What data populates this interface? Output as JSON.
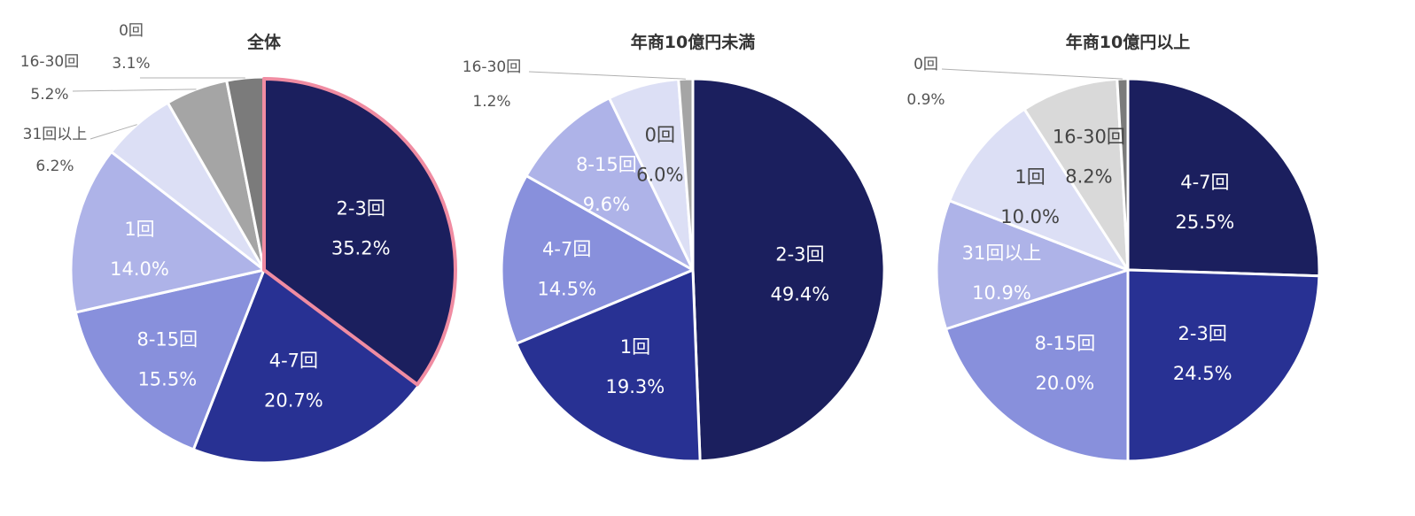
{
  "chart_data": [
    {
      "type": "pie",
      "title": "全体",
      "slices": [
        {
          "label": "2-3回",
          "value": 35.2,
          "display": "35.2%",
          "color": "#1b1f5e",
          "text_color": "#ffffff",
          "label_pos": "inside",
          "highlight": true
        },
        {
          "label": "4-7回",
          "value": 20.7,
          "display": "20.7%",
          "color": "#283193",
          "text_color": "#ffffff",
          "label_pos": "inside"
        },
        {
          "label": "8-15回",
          "value": 15.5,
          "display": "15.5%",
          "color": "#8890dc",
          "text_color": "#ffffff",
          "label_pos": "inside"
        },
        {
          "label": "1回",
          "value": 14.0,
          "display": "14.0%",
          "color": "#aeb3e8",
          "text_color": "#ffffff",
          "label_pos": "inside"
        },
        {
          "label": "31回以上",
          "value": 6.2,
          "display": "6.2%",
          "color": "#dcdff5",
          "text_color": "#555555",
          "label_pos": "outside"
        },
        {
          "label": "16-30回",
          "value": 5.2,
          "display": "5.2%",
          "color": "#a5a5a5",
          "text_color": "#555555",
          "label_pos": "outside"
        },
        {
          "label": "0回",
          "value": 3.1,
          "display": "3.1%",
          "color": "#7b7b7b",
          "text_color": "#555555",
          "label_pos": "outside"
        }
      ],
      "highlight_color": "#f08ca2"
    },
    {
      "type": "pie",
      "title": "年商10億円未満",
      "slices": [
        {
          "label": "2-3回",
          "value": 49.4,
          "display": "49.4%",
          "color": "#1b1f5e",
          "text_color": "#ffffff",
          "label_pos": "inside"
        },
        {
          "label": "1回",
          "value": 19.3,
          "display": "19.3%",
          "color": "#283193",
          "text_color": "#ffffff",
          "label_pos": "inside"
        },
        {
          "label": "4-7回",
          "value": 14.5,
          "display": "14.5%",
          "color": "#8890dc",
          "text_color": "#ffffff",
          "label_pos": "inside"
        },
        {
          "label": "8-15回",
          "value": 9.6,
          "display": "9.6%",
          "color": "#aeb3e8",
          "text_color": "#ffffff",
          "label_pos": "inside"
        },
        {
          "label": "0回",
          "value": 6.0,
          "display": "6.0%",
          "color": "#dcdff5",
          "text_color": "#444444",
          "label_pos": "inside"
        },
        {
          "label": "16-30回",
          "value": 1.2,
          "display": "1.2%",
          "color": "#a5a5a5",
          "text_color": "#555555",
          "label_pos": "outside"
        }
      ]
    },
    {
      "type": "pie",
      "title": "年商10億円以上",
      "slices": [
        {
          "label": "4-7回",
          "value": 25.5,
          "display": "25.5%",
          "color": "#1b1f5e",
          "text_color": "#ffffff",
          "label_pos": "inside"
        },
        {
          "label": "2-3回",
          "value": 24.5,
          "display": "24.5%",
          "color": "#283193",
          "text_color": "#ffffff",
          "label_pos": "inside"
        },
        {
          "label": "8-15回",
          "value": 20.0,
          "display": "20.0%",
          "color": "#8890dc",
          "text_color": "#ffffff",
          "label_pos": "inside"
        },
        {
          "label": "31回以上",
          "value": 10.9,
          "display": "10.9%",
          "color": "#aeb3e8",
          "text_color": "#ffffff",
          "label_pos": "inside"
        },
        {
          "label": "1回",
          "value": 10.0,
          "display": "10.0%",
          "color": "#dcdff5",
          "text_color": "#444444",
          "label_pos": "inside"
        },
        {
          "label": "16-30回",
          "value": 8.2,
          "display": "8.2%",
          "color": "#d9d9d9",
          "text_color": "#444444",
          "label_pos": "inside"
        },
        {
          "label": "0回",
          "value": 0.9,
          "display": "0.9%",
          "color": "#7b7b7b",
          "text_color": "#555555",
          "label_pos": "outside"
        }
      ]
    }
  ]
}
